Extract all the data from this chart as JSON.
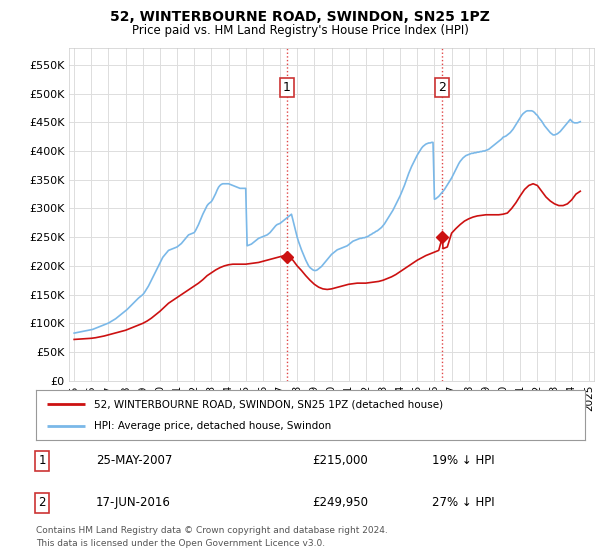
{
  "title": "52, WINTERBOURNE ROAD, SWINDON, SN25 1PZ",
  "subtitle": "Price paid vs. HM Land Registry's House Price Index (HPI)",
  "ylabel_ticks": [
    "£0",
    "£50K",
    "£100K",
    "£150K",
    "£200K",
    "£250K",
    "£300K",
    "£350K",
    "£400K",
    "£450K",
    "£500K",
    "£550K"
  ],
  "ytick_values": [
    0,
    50000,
    100000,
    150000,
    200000,
    250000,
    300000,
    350000,
    400000,
    450000,
    500000,
    550000
  ],
  "ylim": [
    0,
    580000
  ],
  "xlim_start": 1994.7,
  "xlim_end": 2025.3,
  "xticks": [
    1995,
    1996,
    1997,
    1998,
    1999,
    2000,
    2001,
    2002,
    2003,
    2004,
    2005,
    2006,
    2007,
    2008,
    2009,
    2010,
    2011,
    2012,
    2013,
    2014,
    2015,
    2016,
    2017,
    2018,
    2019,
    2020,
    2021,
    2022,
    2023,
    2024,
    2025
  ],
  "bg_color": "#ffffff",
  "plot_bg_color": "#ffffff",
  "grid_color": "#dddddd",
  "hpi_color": "#7ab8e8",
  "price_color": "#cc1111",
  "dashed_line_color": "#dd3333",
  "transaction1_x": 2007.39,
  "transaction1_y": 215000,
  "transaction2_x": 2016.46,
  "transaction2_y": 249950,
  "legend_label_red": "52, WINTERBOURNE ROAD, SWINDON, SN25 1PZ (detached house)",
  "legend_label_blue": "HPI: Average price, detached house, Swindon",
  "annotation1_label": "1",
  "annotation2_label": "2",
  "table_row1": [
    "1",
    "25-MAY-2007",
    "£215,000",
    "19% ↓ HPI"
  ],
  "table_row2": [
    "2",
    "17-JUN-2016",
    "£249,950",
    "27% ↓ HPI"
  ],
  "footer": "Contains HM Land Registry data © Crown copyright and database right 2024.\nThis data is licensed under the Open Government Licence v3.0.",
  "hpi_x": [
    1995.0,
    1995.083,
    1995.167,
    1995.25,
    1995.333,
    1995.417,
    1995.5,
    1995.583,
    1995.667,
    1995.75,
    1995.833,
    1995.917,
    1996.0,
    1996.083,
    1996.167,
    1996.25,
    1996.333,
    1996.417,
    1996.5,
    1996.583,
    1996.667,
    1996.75,
    1996.833,
    1996.917,
    1997.0,
    1997.083,
    1997.167,
    1997.25,
    1997.333,
    1997.417,
    1997.5,
    1997.583,
    1997.667,
    1997.75,
    1997.833,
    1997.917,
    1998.0,
    1998.083,
    1998.167,
    1998.25,
    1998.333,
    1998.417,
    1998.5,
    1998.583,
    1998.667,
    1998.75,
    1998.833,
    1998.917,
    1999.0,
    1999.083,
    1999.167,
    1999.25,
    1999.333,
    1999.417,
    1999.5,
    1999.583,
    1999.667,
    1999.75,
    1999.833,
    1999.917,
    2000.0,
    2000.083,
    2000.167,
    2000.25,
    2000.333,
    2000.417,
    2000.5,
    2000.583,
    2000.667,
    2000.75,
    2000.833,
    2000.917,
    2001.0,
    2001.083,
    2001.167,
    2001.25,
    2001.333,
    2001.417,
    2001.5,
    2001.583,
    2001.667,
    2001.75,
    2001.833,
    2001.917,
    2002.0,
    2002.083,
    2002.167,
    2002.25,
    2002.333,
    2002.417,
    2002.5,
    2002.583,
    2002.667,
    2002.75,
    2002.833,
    2002.917,
    2003.0,
    2003.083,
    2003.167,
    2003.25,
    2003.333,
    2003.417,
    2003.5,
    2003.583,
    2003.667,
    2003.75,
    2003.833,
    2003.917,
    2004.0,
    2004.083,
    2004.167,
    2004.25,
    2004.333,
    2004.417,
    2004.5,
    2004.583,
    2004.667,
    2004.75,
    2004.833,
    2004.917,
    2005.0,
    2005.083,
    2005.167,
    2005.25,
    2005.333,
    2005.417,
    2005.5,
    2005.583,
    2005.667,
    2005.75,
    2005.833,
    2005.917,
    2006.0,
    2006.083,
    2006.167,
    2006.25,
    2006.333,
    2006.417,
    2006.5,
    2006.583,
    2006.667,
    2006.75,
    2006.833,
    2006.917,
    2007.0,
    2007.083,
    2007.167,
    2007.25,
    2007.333,
    2007.417,
    2007.5,
    2007.583,
    2007.667,
    2007.75,
    2007.833,
    2007.917,
    2008.0,
    2008.083,
    2008.167,
    2008.25,
    2008.333,
    2008.417,
    2008.5,
    2008.583,
    2008.667,
    2008.75,
    2008.833,
    2008.917,
    2009.0,
    2009.083,
    2009.167,
    2009.25,
    2009.333,
    2009.417,
    2009.5,
    2009.583,
    2009.667,
    2009.75,
    2009.833,
    2009.917,
    2010.0,
    2010.083,
    2010.167,
    2010.25,
    2010.333,
    2010.417,
    2010.5,
    2010.583,
    2010.667,
    2010.75,
    2010.833,
    2010.917,
    2011.0,
    2011.083,
    2011.167,
    2011.25,
    2011.333,
    2011.417,
    2011.5,
    2011.583,
    2011.667,
    2011.75,
    2011.833,
    2011.917,
    2012.0,
    2012.083,
    2012.167,
    2012.25,
    2012.333,
    2012.417,
    2012.5,
    2012.583,
    2012.667,
    2012.75,
    2012.833,
    2012.917,
    2013.0,
    2013.083,
    2013.167,
    2013.25,
    2013.333,
    2013.417,
    2013.5,
    2013.583,
    2013.667,
    2013.75,
    2013.833,
    2013.917,
    2014.0,
    2014.083,
    2014.167,
    2014.25,
    2014.333,
    2014.417,
    2014.5,
    2014.583,
    2014.667,
    2014.75,
    2014.833,
    2014.917,
    2015.0,
    2015.083,
    2015.167,
    2015.25,
    2015.333,
    2015.417,
    2015.5,
    2015.583,
    2015.667,
    2015.75,
    2015.833,
    2015.917,
    2016.0,
    2016.083,
    2016.167,
    2016.25,
    2016.333,
    2016.417,
    2016.5,
    2016.583,
    2016.667,
    2016.75,
    2016.833,
    2016.917,
    2017.0,
    2017.083,
    2017.167,
    2017.25,
    2017.333,
    2017.417,
    2017.5,
    2017.583,
    2017.667,
    2017.75,
    2017.833,
    2017.917,
    2018.0,
    2018.083,
    2018.167,
    2018.25,
    2018.333,
    2018.417,
    2018.5,
    2018.583,
    2018.667,
    2018.75,
    2018.833,
    2018.917,
    2019.0,
    2019.083,
    2019.167,
    2019.25,
    2019.333,
    2019.417,
    2019.5,
    2019.583,
    2019.667,
    2019.75,
    2019.833,
    2019.917,
    2020.0,
    2020.083,
    2020.167,
    2020.25,
    2020.333,
    2020.417,
    2020.5,
    2020.583,
    2020.667,
    2020.75,
    2020.833,
    2020.917,
    2021.0,
    2021.083,
    2021.167,
    2021.25,
    2021.333,
    2021.417,
    2021.5,
    2021.583,
    2021.667,
    2021.75,
    2021.833,
    2021.917,
    2022.0,
    2022.083,
    2022.167,
    2022.25,
    2022.333,
    2022.417,
    2022.5,
    2022.583,
    2022.667,
    2022.75,
    2022.833,
    2022.917,
    2023.0,
    2023.083,
    2023.167,
    2023.25,
    2023.333,
    2023.417,
    2023.5,
    2023.583,
    2023.667,
    2023.75,
    2023.833,
    2023.917,
    2024.0,
    2024.083,
    2024.167,
    2024.25,
    2024.333,
    2024.417,
    2024.5
  ],
  "hpi_y": [
    83000,
    83500,
    84000,
    84500,
    85000,
    85500,
    86000,
    86500,
    87000,
    87500,
    88000,
    88500,
    89000,
    89500,
    90500,
    91500,
    92500,
    93500,
    94500,
    95500,
    96500,
    97500,
    98500,
    99500,
    100500,
    102000,
    103500,
    105000,
    106500,
    108000,
    110000,
    112000,
    114000,
    116000,
    118000,
    120000,
    122000,
    124000,
    126500,
    129000,
    131500,
    134000,
    136500,
    139000,
    141500,
    144000,
    146000,
    148000,
    150000,
    153000,
    157000,
    161000,
    165000,
    170000,
    175000,
    180000,
    185000,
    190000,
    195000,
    200000,
    205000,
    210000,
    215000,
    218000,
    221000,
    224000,
    227000,
    228000,
    229000,
    230000,
    231000,
    232000,
    233000,
    235000,
    237000,
    239000,
    242000,
    245000,
    248000,
    251000,
    254000,
    255000,
    256000,
    257000,
    258000,
    262000,
    267000,
    272000,
    278000,
    284000,
    290000,
    295000,
    300000,
    305000,
    308000,
    310000,
    312000,
    316000,
    321000,
    326000,
    332000,
    337000,
    340000,
    342000,
    343000,
    343000,
    343000,
    343000,
    343000,
    342000,
    341000,
    340000,
    339000,
    338000,
    337000,
    336000,
    335000,
    335000,
    335000,
    335000,
    335000,
    235000,
    236000,
    237000,
    238000,
    240000,
    242000,
    244000,
    246000,
    248000,
    249000,
    250000,
    251000,
    252000,
    253000,
    254000,
    256000,
    258000,
    261000,
    264000,
    267000,
    270000,
    272000,
    273000,
    274000,
    276000,
    278000,
    280000,
    282000,
    284000,
    286000,
    288000,
    290000,
    280000,
    270000,
    260000,
    250000,
    242000,
    235000,
    228000,
    222000,
    216000,
    210000,
    205000,
    200000,
    197000,
    195000,
    193000,
    192000,
    192000,
    193000,
    195000,
    197000,
    199000,
    202000,
    205000,
    208000,
    211000,
    214000,
    217000,
    220000,
    222000,
    224000,
    226000,
    228000,
    229000,
    230000,
    231000,
    232000,
    233000,
    234000,
    235000,
    237000,
    239000,
    241000,
    243000,
    244000,
    245000,
    246000,
    247000,
    248000,
    248000,
    249000,
    249000,
    250000,
    251000,
    252000,
    254000,
    255000,
    257000,
    258000,
    260000,
    261000,
    263000,
    265000,
    267000,
    270000,
    273000,
    277000,
    281000,
    285000,
    289000,
    293000,
    297000,
    302000,
    307000,
    312000,
    317000,
    322000,
    328000,
    334000,
    340000,
    347000,
    354000,
    361000,
    367000,
    373000,
    378000,
    383000,
    388000,
    393000,
    397000,
    401000,
    405000,
    408000,
    410000,
    412000,
    413000,
    414000,
    414000,
    415000,
    415000,
    316000,
    317000,
    319000,
    321000,
    324000,
    327000,
    330000,
    333000,
    337000,
    341000,
    345000,
    349000,
    353000,
    358000,
    363000,
    368000,
    373000,
    378000,
    382000,
    385000,
    388000,
    390000,
    392000,
    393000,
    394000,
    395000,
    396000,
    396000,
    397000,
    397000,
    398000,
    398000,
    399000,
    399000,
    400000,
    400000,
    401000,
    402000,
    403000,
    405000,
    407000,
    409000,
    411000,
    413000,
    415000,
    417000,
    419000,
    421000,
    424000,
    425000,
    426000,
    428000,
    430000,
    432000,
    435000,
    438000,
    442000,
    446000,
    450000,
    454000,
    458000,
    462000,
    465000,
    467000,
    469000,
    470000,
    470000,
    470000,
    470000,
    469000,
    467000,
    464000,
    462000,
    458000,
    455000,
    452000,
    448000,
    444000,
    441000,
    438000,
    435000,
    432000,
    430000,
    428000,
    428000,
    429000,
    430000,
    432000,
    434000,
    437000,
    440000,
    443000,
    446000,
    449000,
    452000,
    455000,
    452000,
    450000,
    449000,
    449000,
    449000,
    450000,
    451000
  ],
  "price_x": [
    1995.0,
    1995.25,
    1995.5,
    1995.75,
    1996.0,
    1996.25,
    1996.5,
    1996.75,
    1997.0,
    1997.25,
    1997.5,
    1997.75,
    1998.0,
    1998.25,
    1998.5,
    1998.75,
    1999.0,
    1999.25,
    1999.5,
    1999.75,
    2000.0,
    2000.25,
    2000.5,
    2000.75,
    2001.0,
    2001.25,
    2001.5,
    2001.75,
    2002.0,
    2002.25,
    2002.5,
    2002.75,
    2003.0,
    2003.25,
    2003.5,
    2003.75,
    2004.0,
    2004.25,
    2004.5,
    2004.75,
    2005.0,
    2005.25,
    2005.5,
    2005.75,
    2006.0,
    2006.25,
    2006.5,
    2006.75,
    2007.0,
    2007.25,
    2007.39,
    2007.5,
    2007.75,
    2008.0,
    2008.25,
    2008.5,
    2008.75,
    2009.0,
    2009.25,
    2009.5,
    2009.75,
    2010.0,
    2010.25,
    2010.5,
    2010.75,
    2011.0,
    2011.25,
    2011.5,
    2011.75,
    2012.0,
    2012.25,
    2012.5,
    2012.75,
    2013.0,
    2013.25,
    2013.5,
    2013.75,
    2014.0,
    2014.25,
    2014.5,
    2014.75,
    2015.0,
    2015.25,
    2015.5,
    2015.75,
    2016.0,
    2016.25,
    2016.46,
    2016.5,
    2016.75,
    2017.0,
    2017.25,
    2017.5,
    2017.75,
    2018.0,
    2018.25,
    2018.5,
    2018.75,
    2019.0,
    2019.25,
    2019.5,
    2019.75,
    2020.0,
    2020.25,
    2020.5,
    2020.75,
    2021.0,
    2021.25,
    2021.5,
    2021.75,
    2022.0,
    2022.25,
    2022.5,
    2022.75,
    2023.0,
    2023.25,
    2023.5,
    2023.75,
    2024.0,
    2024.25,
    2024.5
  ],
  "price_y": [
    72000,
    72500,
    73000,
    73500,
    74000,
    75000,
    76500,
    78000,
    80000,
    82000,
    84000,
    86000,
    88000,
    91000,
    94000,
    97000,
    100000,
    104000,
    109000,
    115000,
    121000,
    128000,
    135000,
    140000,
    145000,
    150000,
    155000,
    160000,
    165000,
    170000,
    176000,
    183000,
    188000,
    193000,
    197000,
    200000,
    202000,
    203000,
    203000,
    203000,
    203000,
    204000,
    205000,
    206000,
    208000,
    210000,
    212000,
    214000,
    216000,
    218000,
    215000,
    214000,
    210000,
    200000,
    192000,
    183000,
    175000,
    168000,
    163000,
    160000,
    159000,
    160000,
    162000,
    164000,
    166000,
    168000,
    169000,
    170000,
    170000,
    170000,
    171000,
    172000,
    173000,
    175000,
    178000,
    181000,
    185000,
    190000,
    195000,
    200000,
    205000,
    210000,
    214000,
    218000,
    221000,
    224000,
    227000,
    249950,
    230000,
    233000,
    257000,
    265000,
    272000,
    278000,
    282000,
    285000,
    287000,
    288000,
    289000,
    289000,
    289000,
    289000,
    290000,
    292000,
    300000,
    310000,
    322000,
    333000,
    340000,
    343000,
    340000,
    330000,
    320000,
    313000,
    308000,
    305000,
    305000,
    308000,
    315000,
    325000,
    330000
  ]
}
